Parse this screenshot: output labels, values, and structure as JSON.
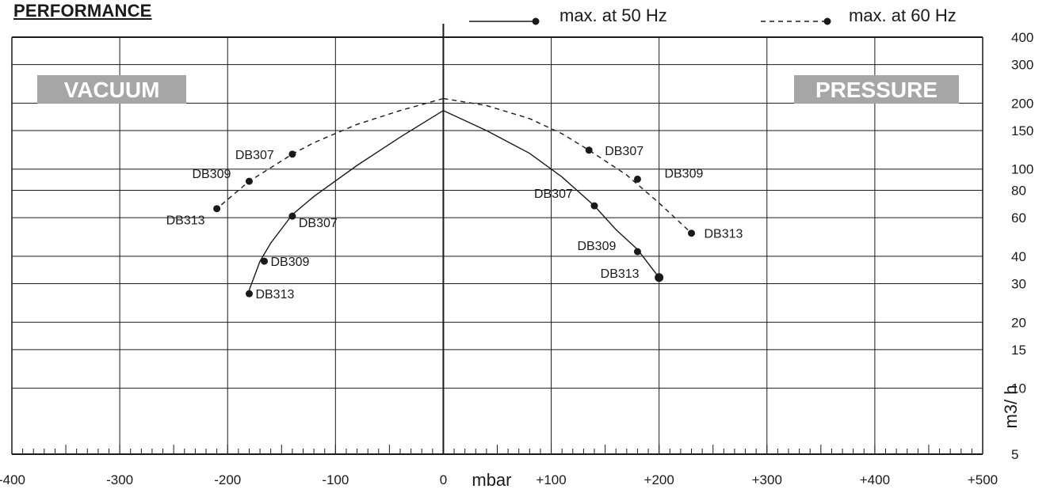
{
  "chart_data": {
    "type": "line",
    "title": "PERFORMANCE",
    "xlabel": "mbar",
    "ylabel": "m3/ h",
    "xlim": [
      -400,
      500
    ],
    "ylim": [
      5,
      400
    ],
    "y_scale": "log",
    "grid": true,
    "legend_position": "top-right",
    "x_ticks": [
      -400,
      -300,
      -200,
      -100,
      0,
      100,
      200,
      300,
      400,
      500
    ],
    "x_tick_labels": [
      "-400",
      "-300",
      "-200",
      "-100",
      "0",
      "+100",
      "+200",
      "+300",
      "+400",
      "+500"
    ],
    "y_ticks": [
      5,
      10,
      15,
      20,
      30,
      40,
      60,
      80,
      100,
      150,
      200,
      300,
      400
    ],
    "y_tick_labels": [
      "5",
      "10",
      "15",
      "20",
      "30",
      "40",
      "60",
      "80",
      "100",
      "150",
      "200",
      "300",
      "400"
    ],
    "regions": {
      "vacuum": "VACUUM",
      "pressure": "PRESSURE"
    },
    "series": [
      {
        "name": "max. at 50 Hz",
        "style": "solid",
        "vacuum_curve": [
          [
            0,
            185
          ],
          [
            -40,
            140
          ],
          [
            -80,
            104
          ],
          [
            -120,
            75
          ],
          [
            -140,
            62
          ],
          [
            -160,
            46
          ],
          [
            -170,
            38
          ],
          [
            -180,
            28
          ]
        ],
        "pressure_curve": [
          [
            0,
            185
          ],
          [
            40,
            150
          ],
          [
            80,
            118
          ],
          [
            110,
            92
          ],
          [
            140,
            68
          ],
          [
            160,
            53
          ],
          [
            180,
            43
          ],
          [
            200,
            32
          ]
        ],
        "points": [
          {
            "label": "DB307",
            "x": -140,
            "y": 61
          },
          {
            "label": "DB309",
            "x": -166,
            "y": 38
          },
          {
            "label": "DB313",
            "x": -180,
            "y": 27
          },
          {
            "label": "DB307",
            "x": 140,
            "y": 68
          },
          {
            "label": "DB309",
            "x": 180,
            "y": 42
          },
          {
            "label": "DB313",
            "x": 200,
            "y": 32
          }
        ]
      },
      {
        "name": "max. at 60 Hz",
        "style": "dashed",
        "vacuum_curve": [
          [
            0,
            210
          ],
          [
            -40,
            185
          ],
          [
            -80,
            160
          ],
          [
            -120,
            132
          ],
          [
            -140,
            117
          ],
          [
            -180,
            88
          ],
          [
            -210,
            66
          ]
        ],
        "pressure_curve": [
          [
            0,
            210
          ],
          [
            40,
            195
          ],
          [
            80,
            170
          ],
          [
            110,
            145
          ],
          [
            135,
            122
          ],
          [
            170,
            94
          ],
          [
            200,
            70
          ],
          [
            230,
            51
          ]
        ],
        "points": [
          {
            "label": "DB307",
            "x": -140,
            "y": 117
          },
          {
            "label": "DB309",
            "x": -180,
            "y": 88
          },
          {
            "label": "DB313",
            "x": -210,
            "y": 66
          },
          {
            "label": "DB307",
            "x": 135,
            "y": 122
          },
          {
            "label": "DB309",
            "x": 180,
            "y": 90
          },
          {
            "label": "DB313",
            "x": 230,
            "y": 51
          }
        ]
      }
    ],
    "colors": {
      "axis": "#1a1a1a",
      "grid": "#1a1a1a",
      "banner_bg": "#a6a6a6",
      "banner_text": "#ffffff"
    }
  }
}
